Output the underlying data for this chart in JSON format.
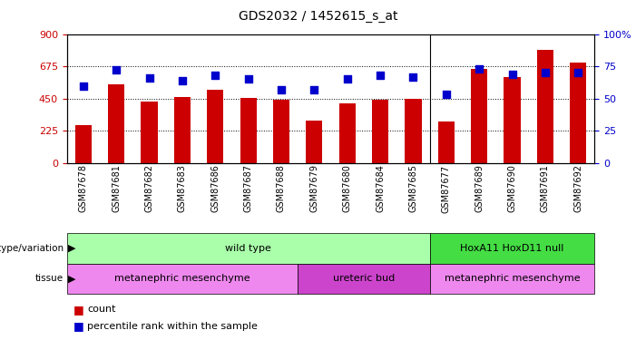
{
  "title": "GDS2032 / 1452615_s_at",
  "samples": [
    "GSM87678",
    "GSM87681",
    "GSM87682",
    "GSM87683",
    "GSM87686",
    "GSM87687",
    "GSM87688",
    "GSM87679",
    "GSM87680",
    "GSM87684",
    "GSM87685",
    "GSM87677",
    "GSM87689",
    "GSM87690",
    "GSM87691",
    "GSM87692"
  ],
  "counts": [
    265,
    550,
    430,
    460,
    510,
    455,
    440,
    295,
    415,
    440,
    450,
    290,
    660,
    600,
    790,
    700
  ],
  "percentile": [
    60,
    72,
    66,
    64,
    68,
    65,
    57,
    57,
    65,
    68,
    67,
    53,
    73,
    69,
    70,
    70
  ],
  "bar_color": "#cc0000",
  "dot_color": "#0000cc",
  "left_ylim": [
    0,
    900
  ],
  "right_ylim": [
    0,
    100
  ],
  "left_yticks": [
    0,
    225,
    450,
    675,
    900
  ],
  "right_yticks": [
    0,
    25,
    50,
    75,
    100
  ],
  "right_yticklabels": [
    "0",
    "25",
    "50",
    "75",
    "100%"
  ],
  "genotype_groups": [
    {
      "label": "wild type",
      "start": 0,
      "end": 11,
      "color": "#aaffaa"
    },
    {
      "label": "HoxA11 HoxD11 null",
      "start": 11,
      "end": 16,
      "color": "#44dd44"
    }
  ],
  "tissue_groups": [
    {
      "label": "metanephric mesenchyme",
      "start": 0,
      "end": 7,
      "color": "#ee88ee"
    },
    {
      "label": "ureteric bud",
      "start": 7,
      "end": 11,
      "color": "#cc44cc"
    },
    {
      "label": "metanephric mesenchyme",
      "start": 11,
      "end": 16,
      "color": "#ee88ee"
    }
  ],
  "legend_count_color": "#cc0000",
  "legend_percentile_color": "#0000cc",
  "bg_color": "#ffffff",
  "bar_width": 0.5,
  "dot_size": 40,
  "sep_index": 11
}
